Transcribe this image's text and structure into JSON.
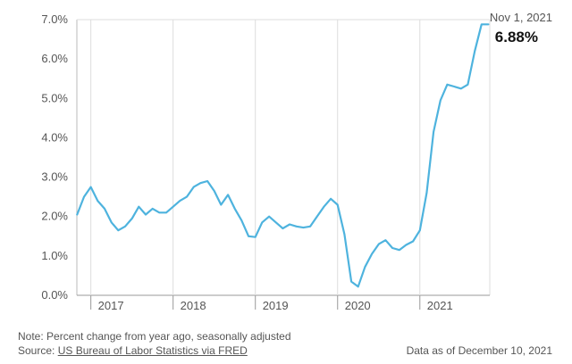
{
  "chart_data": {
    "type": "line",
    "y_ticks": [
      "0.0%",
      "1.0%",
      "2.0%",
      "3.0%",
      "4.0%",
      "5.0%",
      "6.0%",
      "7.0%"
    ],
    "ylim": [
      0,
      7
    ],
    "x_ticks": [
      "2017",
      "2018",
      "2019",
      "2020",
      "2021"
    ],
    "xlim": [
      2016.83,
      2021.85
    ],
    "grid": "vertical",
    "annotation": {
      "date": "Nov 1, 2021",
      "value": "6.88%"
    },
    "series": [
      {
        "color": "#4eb3de",
        "x": [
          2016.833,
          2016.917,
          2017.0,
          2017.083,
          2017.167,
          2017.25,
          2017.333,
          2017.417,
          2017.5,
          2017.583,
          2017.667,
          2017.75,
          2017.833,
          2017.917,
          2018.0,
          2018.083,
          2018.167,
          2018.25,
          2018.333,
          2018.417,
          2018.5,
          2018.583,
          2018.667,
          2018.75,
          2018.833,
          2018.917,
          2019.0,
          2019.083,
          2019.167,
          2019.25,
          2019.333,
          2019.417,
          2019.5,
          2019.583,
          2019.667,
          2019.75,
          2019.833,
          2019.917,
          2020.0,
          2020.083,
          2020.167,
          2020.25,
          2020.333,
          2020.417,
          2020.5,
          2020.583,
          2020.667,
          2020.75,
          2020.833,
          2020.917,
          2021.0,
          2021.083,
          2021.167,
          2021.25,
          2021.333,
          2021.417,
          2021.5,
          2021.583,
          2021.667,
          2021.75,
          2021.833
        ],
        "y": [
          2.05,
          2.5,
          2.75,
          2.4,
          2.2,
          1.85,
          1.65,
          1.75,
          1.95,
          2.25,
          2.05,
          2.2,
          2.1,
          2.1,
          2.25,
          2.4,
          2.5,
          2.75,
          2.85,
          2.9,
          2.65,
          2.3,
          2.55,
          2.2,
          1.9,
          1.5,
          1.48,
          1.85,
          2.0,
          1.85,
          1.7,
          1.8,
          1.75,
          1.72,
          1.75,
          2.0,
          2.25,
          2.45,
          2.3,
          1.55,
          0.35,
          0.22,
          0.72,
          1.05,
          1.3,
          1.4,
          1.2,
          1.15,
          1.28,
          1.37,
          1.65,
          2.6,
          4.15,
          4.95,
          5.35,
          5.3,
          5.25,
          5.35,
          6.2,
          6.88,
          6.88
        ]
      }
    ]
  },
  "footer": {
    "note": "Note: Percent change from year ago, seasonally adjusted",
    "source_prefix": "Source: ",
    "source_link": "US Bureau of Labor Statistics via FRED",
    "as_of": "Data as of December 10, 2021"
  }
}
